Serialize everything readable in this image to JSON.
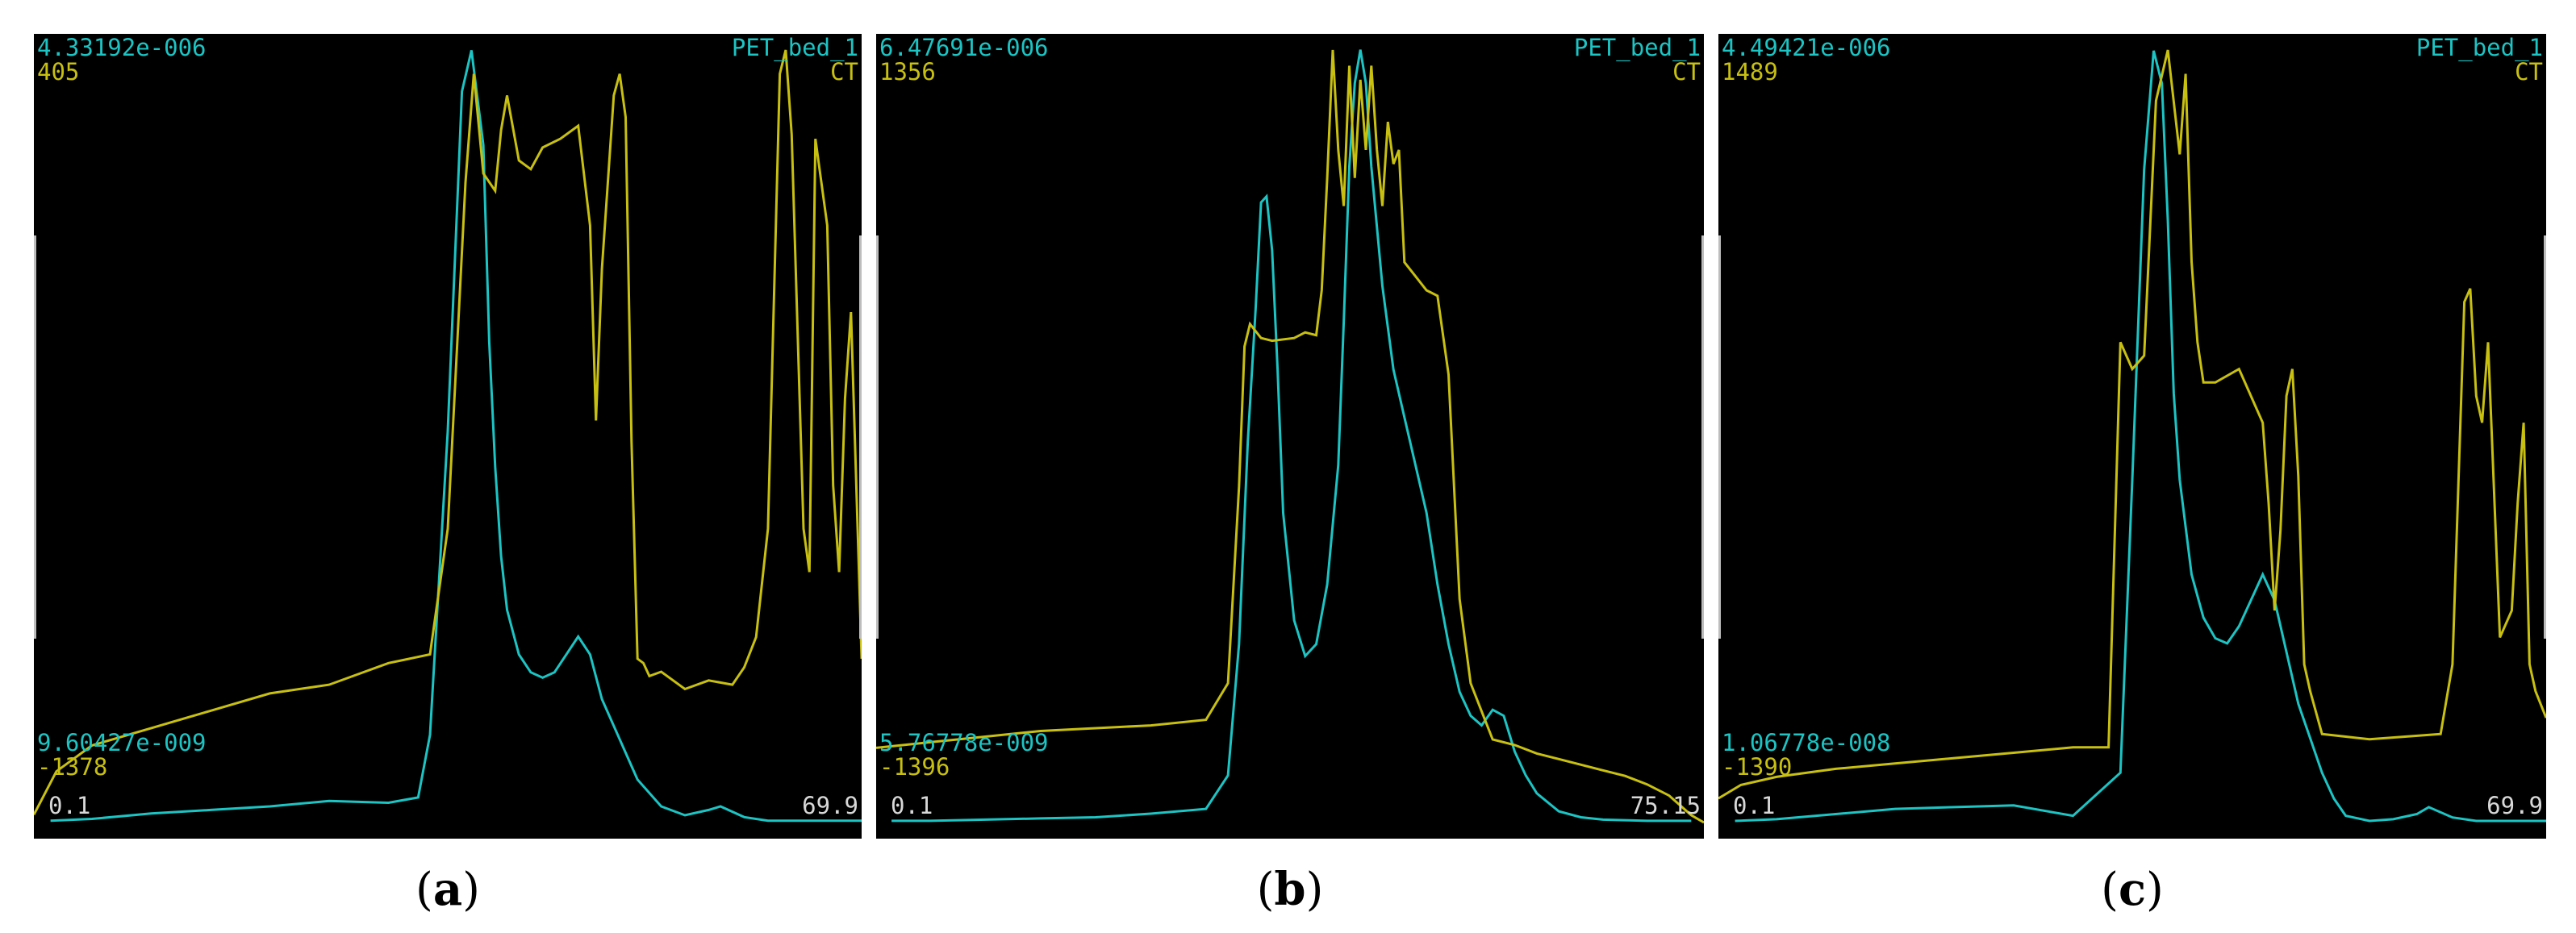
{
  "colors": {
    "pet": "#1cc4c4",
    "ct": "#c8c010",
    "background": "#000000",
    "range": "#d8d8d8"
  },
  "panels": [
    {
      "caption_open": "(",
      "caption_letter": "a",
      "caption_close": ")",
      "pet_label": "PET_bed_1",
      "ct_label": "CT",
      "pet_max": "4.33192e-006",
      "ct_max": "405",
      "pet_min": "9.60427e-009",
      "ct_min": "-1378",
      "x_start": "0.1",
      "x_end": "69.9"
    },
    {
      "caption_open": "(",
      "caption_letter": "b",
      "caption_close": ")",
      "pet_label": "PET_bed_1",
      "ct_label": "CT",
      "pet_max": "6.47691e-006",
      "ct_max": "1356",
      "pet_min": "5.76778e-009",
      "ct_min": "-1396",
      "x_start": "0.1",
      "x_end": "75.15"
    },
    {
      "caption_open": "(",
      "caption_letter": "c",
      "caption_close": ")",
      "pet_label": "PET_bed_1",
      "ct_label": "CT",
      "pet_max": "4.49421e-006",
      "ct_max": "1489",
      "pet_min": "1.06778e-008",
      "ct_min": "-1390",
      "x_start": "0.1",
      "x_end": "69.9"
    }
  ],
  "chart_data": [
    {
      "type": "line",
      "xlim": [
        0.1,
        69.9
      ],
      "series": [
        {
          "name": "PET_bed_1",
          "color": "#1cc4c4",
          "ylim": [
            0.0096,
            4.332
          ],
          "x": [
            1.5,
            5,
            10,
            15,
            20,
            25,
            30,
            32.5,
            33.5,
            35,
            36.2,
            37,
            38,
            38.5,
            39,
            39.5,
            40,
            41,
            42,
            43,
            44,
            45,
            46,
            47,
            48,
            49,
            50,
            51,
            53,
            55,
            57,
            58,
            60,
            62,
            64,
            66,
            68,
            69.9
          ],
          "y": [
            0.02,
            0.03,
            0.06,
            0.08,
            0.1,
            0.13,
            0.12,
            0.15,
            0.5,
            2.2,
            4.1,
            4.33,
            3.8,
            2.7,
            2.0,
            1.5,
            1.2,
            0.95,
            0.85,
            0.82,
            0.85,
            0.95,
            1.05,
            0.95,
            0.7,
            0.55,
            0.4,
            0.25,
            0.1,
            0.05,
            0.08,
            0.1,
            0.04,
            0.02,
            0.02,
            0.02,
            0.02,
            0.02
          ]
        },
        {
          "name": "CT",
          "color": "#c8c010",
          "ylim": [
            -1378,
            405
          ],
          "x": [
            0.1,
            2,
            5,
            10,
            15,
            20,
            25,
            30,
            33.5,
            35,
            36.5,
            37.2,
            38,
            39,
            39.5,
            40,
            41,
            42,
            43,
            44.5,
            46,
            47,
            47.5,
            48,
            49,
            49.5,
            50,
            50.5,
            51,
            51.5,
            52,
            53,
            55,
            57,
            59,
            60,
            61,
            62,
            63,
            63.5,
            64,
            65,
            65.5,
            66,
            67,
            67.5,
            68,
            68.5,
            69,
            69.9
          ],
          "y": [
            -1360,
            -1260,
            -1200,
            -1160,
            -1120,
            -1080,
            -1060,
            -1010,
            -990,
            -700,
            100,
            350,
            120,
            80,
            220,
            300,
            150,
            130,
            180,
            200,
            230,
            0,
            -450,
            -100,
            300,
            350,
            250,
            -500,
            -1000,
            -1010,
            -1040,
            -1030,
            -1070,
            -1050,
            -1060,
            -1020,
            -950,
            -700,
            350,
            405,
            210,
            -700,
            -800,
            200,
            0,
            -600,
            -800,
            -400,
            -200,
            -1000
          ]
        }
      ]
    },
    {
      "type": "line",
      "xlim": [
        0.1,
        75.15
      ],
      "series": [
        {
          "name": "PET_bed_1",
          "color": "#1cc4c4",
          "ylim": [
            0.0058,
            6.477
          ],
          "x": [
            1.5,
            5,
            10,
            15,
            20,
            25,
            30,
            32,
            33,
            33.8,
            34.5,
            35,
            35.5,
            36,
            36.5,
            37,
            38,
            39,
            40,
            41,
            42,
            42.5,
            43,
            43.5,
            44,
            44.5,
            45,
            46,
            47,
            48,
            49,
            50,
            51,
            52,
            53,
            54,
            55,
            56,
            57,
            58,
            59,
            60,
            62,
            64,
            66,
            70,
            74
          ],
          "y": [
            0.02,
            0.02,
            0.03,
            0.04,
            0.05,
            0.08,
            0.12,
            0.4,
            1.5,
            3.2,
            4.3,
            5.2,
            5.25,
            4.8,
            3.8,
            2.6,
            1.7,
            1.4,
            1.5,
            2.0,
            3.0,
            4.2,
            5.5,
            6.2,
            6.48,
            6.2,
            5.5,
            4.5,
            3.8,
            3.4,
            3.0,
            2.6,
            2.0,
            1.5,
            1.1,
            0.9,
            0.82,
            0.95,
            0.9,
            0.6,
            0.4,
            0.25,
            0.1,
            0.05,
            0.03,
            0.02,
            0.02
          ]
        },
        {
          "name": "CT",
          "color": "#c8c010",
          "ylim": [
            -1396,
            1356
          ],
          "x": [
            0.1,
            5,
            10,
            15,
            20,
            25,
            30,
            32,
            33,
            33.5,
            34,
            35,
            36,
            38,
            39,
            40,
            40.5,
            41,
            41.5,
            42,
            42.5,
            43,
            43.5,
            44,
            44.5,
            45,
            45.5,
            46,
            46.5,
            47,
            47.5,
            48,
            49,
            50,
            51,
            52,
            53,
            54,
            55,
            56,
            58,
            60,
            62,
            64,
            66,
            68,
            70,
            72,
            74,
            75.15
          ],
          "y": [
            -1130,
            -1110,
            -1090,
            -1070,
            -1060,
            -1050,
            -1030,
            -900,
            -200,
            300,
            380,
            330,
            320,
            330,
            350,
            340,
            500,
            900,
            1356,
            1000,
            800,
            1300,
            900,
            1250,
            1000,
            1300,
            1000,
            800,
            1100,
            950,
            1000,
            600,
            550,
            500,
            480,
            200,
            -600,
            -900,
            -1000,
            -1100,
            -1120,
            -1150,
            -1170,
            -1190,
            -1210,
            -1230,
            -1260,
            -1300,
            -1370,
            -1396
          ]
        }
      ]
    },
    {
      "type": "line",
      "xlim": [
        0.1,
        69.9
      ],
      "series": [
        {
          "name": "PET_bed_1",
          "color": "#1cc4c4",
          "ylim": [
            0.0107,
            4.494
          ],
          "x": [
            1.5,
            5,
            10,
            15,
            20,
            25,
            30,
            34,
            35,
            36,
            36.8,
            37.5,
            38,
            38.5,
            39,
            40,
            41,
            42,
            43,
            44,
            45,
            46,
            47,
            48,
            49,
            50,
            51,
            52,
            53,
            55,
            57,
            59,
            60,
            62,
            64,
            66,
            68,
            69.9
          ],
          "y": [
            0.02,
            0.03,
            0.06,
            0.09,
            0.1,
            0.11,
            0.05,
            0.3,
            2.0,
            3.8,
            4.49,
            4.3,
            3.5,
            2.5,
            2.0,
            1.45,
            1.2,
            1.08,
            1.05,
            1.15,
            1.3,
            1.45,
            1.3,
            1.0,
            0.7,
            0.5,
            0.3,
            0.15,
            0.05,
            0.02,
            0.03,
            0.06,
            0.1,
            0.04,
            0.02,
            0.02,
            0.02,
            0.02
          ]
        },
        {
          "name": "CT",
          "color": "#c8c010",
          "ylim": [
            -1390,
            1489
          ],
          "x": [
            0.1,
            2,
            5,
            10,
            15,
            20,
            25,
            30,
            33,
            34,
            35,
            36,
            37,
            38,
            39,
            39.5,
            40,
            40.5,
            41,
            42,
            44,
            45,
            46,
            46.5,
            47,
            47.5,
            48,
            48.5,
            49,
            49.5,
            50,
            51,
            53,
            55,
            58,
            61,
            62,
            63,
            63.5,
            64,
            64.5,
            65,
            66,
            67,
            67.5,
            68,
            68.5,
            69,
            69.9
          ],
          "y": [
            -1300,
            -1250,
            -1220,
            -1190,
            -1170,
            -1150,
            -1130,
            -1110,
            -1110,
            400,
            300,
            350,
            1300,
            1489,
            1100,
            1400,
            700,
            400,
            250,
            250,
            300,
            200,
            100,
            -200,
            -600,
            -300,
            200,
            300,
            -100,
            -800,
            -900,
            -1060,
            -1070,
            -1080,
            -1070,
            -1060,
            -800,
            550,
            600,
            200,
            100,
            400,
            -700,
            -600,
            -200,
            100,
            -800,
            -900,
            -1000
          ]
        }
      ]
    }
  ]
}
